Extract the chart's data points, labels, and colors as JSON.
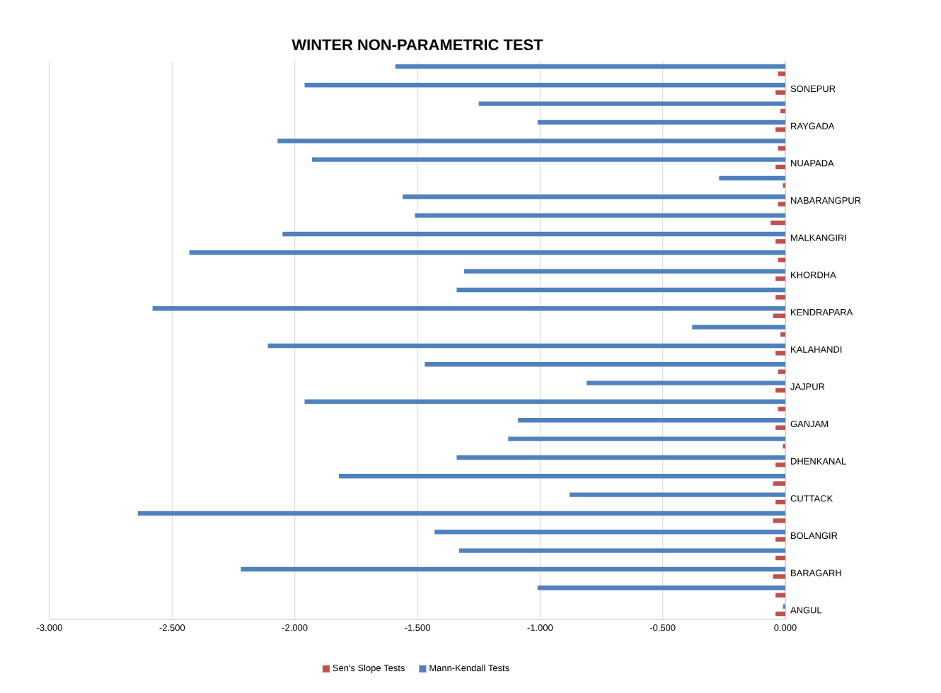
{
  "chart_data": {
    "type": "bar",
    "orientation": "horizontal",
    "title": "WINTER NON-PARAMETRIC TEST",
    "categories": [
      null,
      "SONEPUR",
      null,
      "RAYGADA",
      null,
      "NUAPADA",
      null,
      "NABARANGPUR",
      null,
      "MALKANGIRI",
      null,
      "KHORDHA",
      null,
      "KENDRAPARA",
      null,
      "KALAHANDI",
      null,
      "JAJPUR",
      null,
      "GANJAM",
      null,
      "DHENKANAL",
      null,
      "CUTTACK",
      null,
      "BOLANGIR",
      null,
      "BARAGARH",
      null,
      "ANGUL"
    ],
    "series": [
      {
        "name": "Sen's Slope Tests",
        "color": "#c0504d",
        "values": [
          -0.03,
          -0.04,
          -0.02,
          -0.04,
          -0.03,
          -0.04,
          -0.01,
          -0.03,
          -0.06,
          -0.04,
          -0.03,
          -0.04,
          -0.04,
          -0.05,
          -0.02,
          -0.04,
          -0.03,
          -0.04,
          -0.03,
          -0.04,
          -0.01,
          -0.04,
          -0.05,
          -0.04,
          -0.05,
          -0.04,
          -0.04,
          -0.05,
          -0.04,
          -0.04
        ]
      },
      {
        "name": "Mann-Kendall Tests",
        "color": "#4f81bd",
        "values": [
          -1.59,
          -1.96,
          -1.25,
          -1.01,
          -2.07,
          -1.93,
          -0.27,
          -1.56,
          -1.51,
          -2.05,
          -2.43,
          -1.31,
          -1.34,
          -2.58,
          -0.38,
          -2.11,
          -1.47,
          -0.81,
          -1.96,
          -1.09,
          -1.13,
          -1.34,
          -1.82,
          -0.88,
          -2.64,
          -1.43,
          -1.33,
          -2.22,
          -1.01,
          -0.01
        ]
      }
    ],
    "xlim": [
      -3,
      0
    ],
    "xticks": [
      {
        "value": -3,
        "label": "-3.000"
      },
      {
        "value": -2.5,
        "label": "-2.500"
      },
      {
        "value": -2,
        "label": "-2.000"
      },
      {
        "value": -1.5,
        "label": "-1.500"
      },
      {
        "value": -1,
        "label": "-1.000"
      },
      {
        "value": -0.5,
        "label": "-0.500"
      },
      {
        "value": 0,
        "label": "0.000"
      }
    ],
    "grid": "x",
    "legend": "bottom"
  }
}
